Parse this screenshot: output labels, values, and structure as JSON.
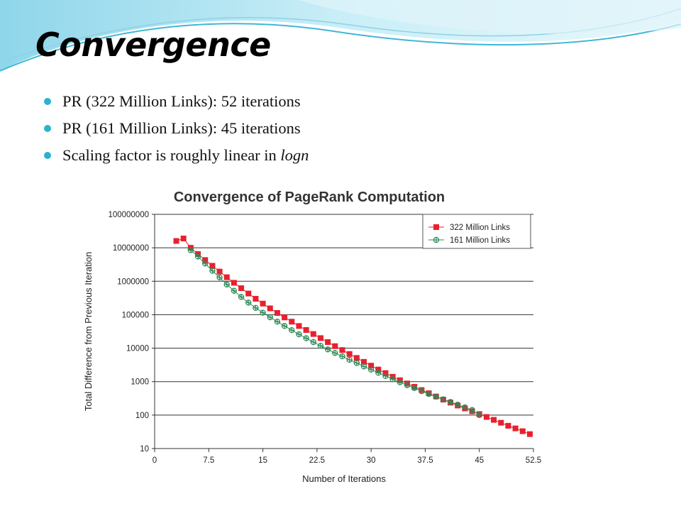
{
  "slide": {
    "title": "Convergence",
    "bullets": [
      {
        "text": "PR (322 Million Links): 52 iterations",
        "italic_suffix": ""
      },
      {
        "text": "PR (161 Million Links): 45 iterations",
        "italic_suffix": ""
      },
      {
        "text": "Scaling factor is roughly linear in ",
        "italic_suffix": "logn"
      }
    ],
    "colors": {
      "accent": "#2bb3cc",
      "swoosh_light": "#bfe9f4",
      "swoosh_dark": "#3fb7d6"
    }
  },
  "chart_data": {
    "type": "scatter",
    "title": "Convergence of PageRank Computation",
    "xlabel": "Number of Iterations",
    "ylabel": "Total Difference from Previous Iteration",
    "xlim": [
      0,
      52.5
    ],
    "ylim": [
      10,
      100000000
    ],
    "yscale": "log",
    "x_ticks": [
      "0",
      "7.5",
      "15",
      "22.5",
      "30",
      "37.5",
      "45",
      "52.5"
    ],
    "y_ticks": [
      "100000000",
      "10000000",
      "1000000",
      "100000",
      "10000",
      "1000",
      "100",
      "10"
    ],
    "grid": "horizontal",
    "legend_position": "top-right",
    "series": [
      {
        "name": "322 Million Links",
        "color": "#e8202e",
        "marker": "square",
        "x": [
          3,
          4,
          5,
          6,
          7,
          8,
          9,
          10,
          11,
          12,
          13,
          14,
          15,
          16,
          17,
          18,
          19,
          20,
          21,
          22,
          23,
          24,
          25,
          26,
          27,
          28,
          29,
          30,
          31,
          32,
          33,
          34,
          35,
          36,
          37,
          38,
          39,
          40,
          41,
          42,
          43,
          44,
          45,
          46,
          47,
          48,
          49,
          50,
          51,
          52
        ],
        "y": [
          16000000,
          19000000,
          10000000,
          6500000,
          4300000,
          2900000,
          1950000,
          1320000,
          900000,
          620000,
          430000,
          300000,
          215000,
          155000,
          113000,
          83000,
          62000,
          46000,
          35000,
          26500,
          20000,
          15200,
          11500,
          8800,
          6700,
          5100,
          3900,
          3000,
          2300,
          1800,
          1400,
          1100,
          880,
          700,
          560,
          450,
          360,
          290,
          236,
          193,
          158,
          130,
          107,
          88,
          72,
          59,
          48,
          40,
          33,
          27
        ]
      },
      {
        "name": "161 Million Links",
        "color": "#2e8b57",
        "marker": "cross",
        "x": [
          5,
          6,
          7,
          8,
          9,
          10,
          11,
          12,
          13,
          14,
          15,
          16,
          17,
          18,
          19,
          20,
          21,
          22,
          23,
          24,
          25,
          26,
          27,
          28,
          29,
          30,
          31,
          32,
          33,
          34,
          35,
          36,
          37,
          38,
          39,
          40,
          41,
          42,
          43,
          44,
          45
        ],
        "y": [
          8500000,
          5500000,
          3400000,
          2050000,
          1300000,
          800000,
          520000,
          340000,
          230000,
          160000,
          115000,
          84000,
          62000,
          46000,
          34500,
          26000,
          19800,
          15200,
          11800,
          9200,
          7200,
          5700,
          4500,
          3600,
          2850,
          2280,
          1830,
          1470,
          1180,
          960,
          780,
          640,
          520,
          430,
          355,
          295,
          245,
          205,
          170,
          142,
          100
        ]
      }
    ]
  }
}
